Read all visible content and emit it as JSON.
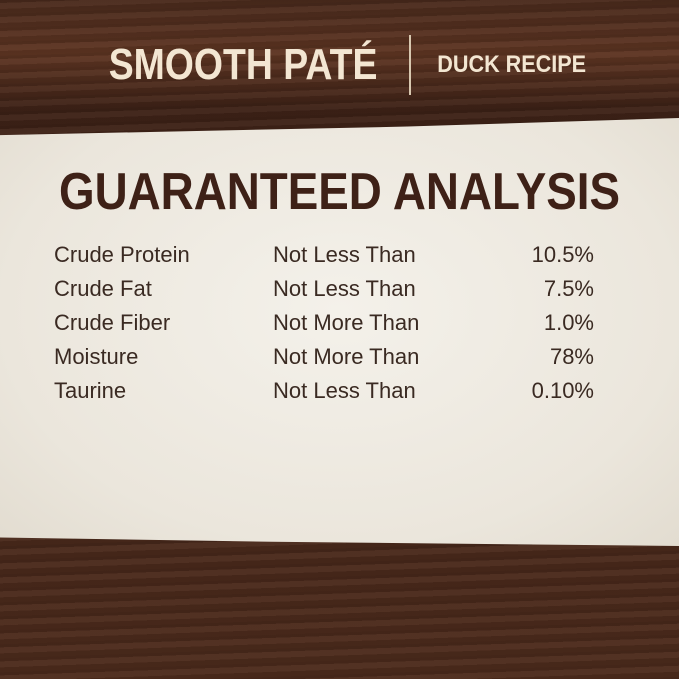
{
  "header": {
    "title": "SMOOTH PATÉ",
    "subtitle": "DUCK RECIPE"
  },
  "analysis": {
    "heading": "GUARANTEED ANALYSIS",
    "rows": [
      {
        "nutrient": "Crude Protein",
        "qualifier": "Not Less Than",
        "value": "10.5%"
      },
      {
        "nutrient": "Crude Fat",
        "qualifier": "Not Less Than",
        "value": "7.5%"
      },
      {
        "nutrient": "Crude Fiber",
        "qualifier": "Not More Than",
        "value": "1.0%"
      },
      {
        "nutrient": "Moisture",
        "qualifier": "Not More Than",
        "value": "78%"
      },
      {
        "nutrient": "Taurine",
        "qualifier": "Not Less Than",
        "value": "0.10%"
      }
    ]
  }
}
